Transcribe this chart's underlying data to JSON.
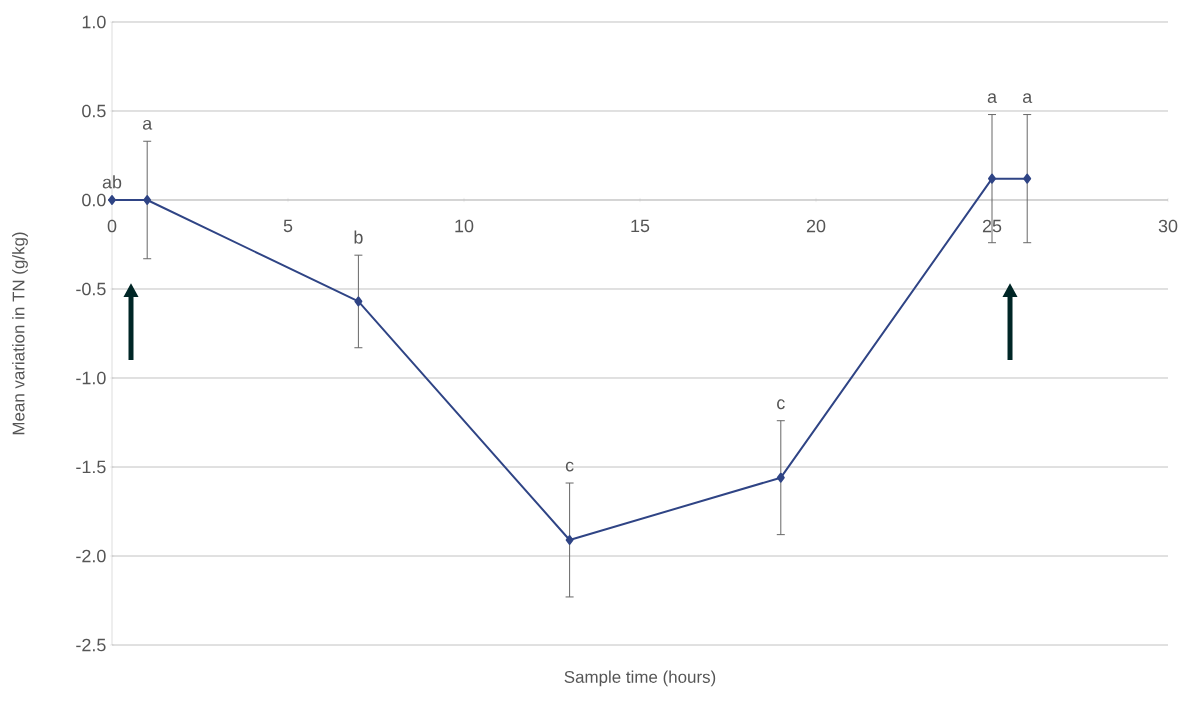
{
  "chart_data": {
    "type": "line",
    "xlabel": "Sample time (hours)",
    "ylabel": "Mean variation in TN (g/kg)",
    "x": [
      0,
      1,
      7,
      13,
      19,
      25,
      26
    ],
    "values": [
      0,
      0,
      -0.57,
      -1.91,
      -1.56,
      0.12,
      0.12
    ],
    "errors": [
      null,
      0.33,
      0.26,
      0.32,
      0.32,
      0.36,
      0.36
    ],
    "color": "#2f4485",
    "marker": "diamond",
    "grid": "y",
    "xlim": [
      0,
      30
    ],
    "ylim": [
      -2.5,
      1.0
    ],
    "xticks": [
      0,
      5,
      10,
      15,
      20,
      25,
      30
    ],
    "yticks": [
      {
        "value": -2.5,
        "label": "-2.5"
      },
      {
        "value": -2,
        "label": "-2.0"
      },
      {
        "value": -1.5,
        "label": "-1.5"
      },
      {
        "value": -1,
        "label": "-1.0"
      },
      {
        "value": -0.5,
        "label": "-0.5"
      },
      {
        "value": 0,
        "label": "0.0"
      },
      {
        "value": 0.5,
        "label": "0.5"
      },
      {
        "value": 1,
        "label": "1.0"
      }
    ],
    "annotations": [
      {
        "text": "ab",
        "x": 0,
        "y": 0
      },
      {
        "text": "a",
        "x": 1,
        "y": 0.33
      },
      {
        "text": "b",
        "x": 7,
        "y": -0.31
      },
      {
        "text": "c",
        "x": 13,
        "y": -1.59
      },
      {
        "text": "c",
        "x": 19,
        "y": -1.24
      },
      {
        "text": "a",
        "x": 25,
        "y": 0.48
      },
      {
        "text": "a",
        "x": 26,
        "y": 0.48
      }
    ]
  }
}
